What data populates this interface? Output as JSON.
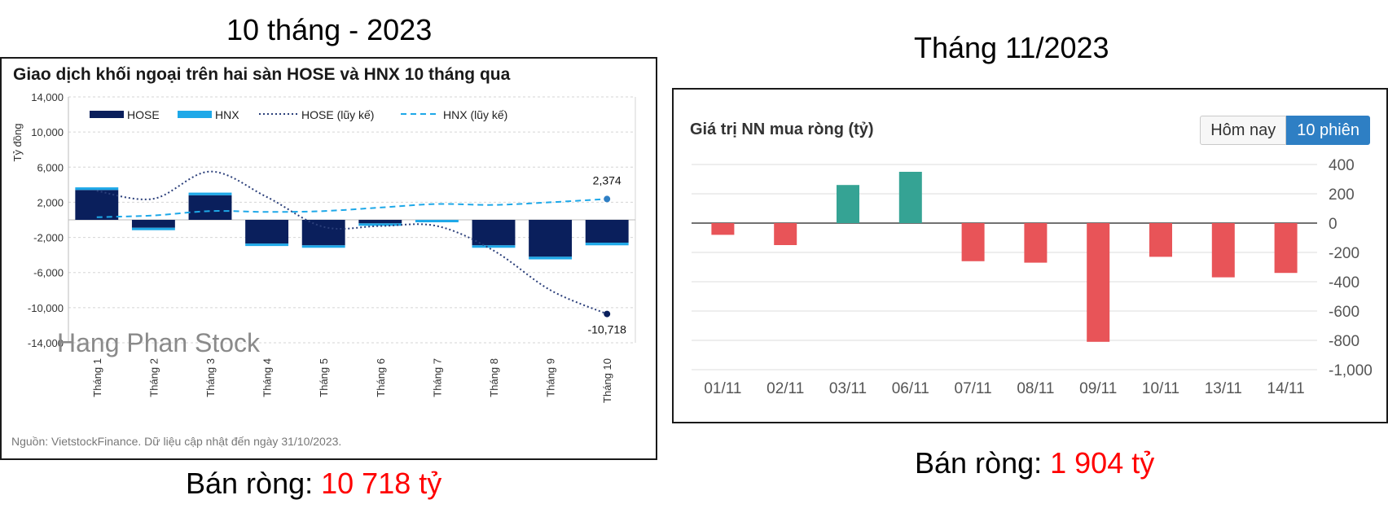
{
  "left": {
    "heading": "10 tháng - 2023",
    "summary_label": "Bán ròng: ",
    "summary_value": "10 718 tỷ"
  },
  "right": {
    "heading": "Tháng 11/2023",
    "summary_label": "Bán ròng: ",
    "summary_value": "1 904 tỷ"
  },
  "colors": {
    "hose": "#0a1f5c",
    "hnx": "#1ea8e8",
    "positive": "#35a394",
    "negative": "#e85458",
    "highlight": "#ff0000"
  },
  "chart_data": [
    {
      "type": "bar",
      "title": "Giao dịch khối ngoại trên hai sàn HOSE và HNX 10 tháng qua",
      "ylabel": "Tỷ đồng",
      "xlabel": "",
      "ylim": [
        -14000,
        14000
      ],
      "yticks": [
        14000,
        10000,
        6000,
        2000,
        -2000,
        -6000,
        -10000,
        -14000
      ],
      "ytick_labels": [
        "14,000",
        "10,000",
        "6,000",
        "2,000",
        "-2,000",
        "-6,000",
        "-10,000",
        "-14,000"
      ],
      "categories": [
        "Tháng 1",
        "Tháng 2",
        "Tháng 3",
        "Tháng 4",
        "Tháng 5",
        "Tháng 6",
        "Tháng 7",
        "Tháng 8",
        "Tháng 9",
        "Tháng 10"
      ],
      "series": [
        {
          "name": "HOSE",
          "kind": "bar",
          "values": [
            3400,
            -900,
            2800,
            -2700,
            -2900,
            -400,
            0,
            -2900,
            -4200,
            -2600
          ]
        },
        {
          "name": "HNX",
          "kind": "bar",
          "values": [
            300,
            -200,
            300,
            -100,
            -100,
            -100,
            -100,
            -100,
            -300,
            -300
          ]
        },
        {
          "name": "HOSE (lũy kế)",
          "kind": "line",
          "values": [
            3300,
            2400,
            5500,
            2600,
            -800,
            -700,
            -700,
            -3500,
            -8000,
            -10718
          ]
        },
        {
          "name": "HNX (lũy kế)",
          "kind": "line",
          "values": [
            300,
            500,
            1000,
            900,
            1000,
            1400,
            1800,
            1700,
            2000,
            2374
          ]
        }
      ],
      "annotations": [
        "2,374",
        "-10,718"
      ],
      "watermark": "Hang Phan Stock",
      "source": "Nguồn: VietstockFinance. Dữ liệu cập nhật đến ngày 31/10/2023."
    },
    {
      "type": "bar",
      "title": "Giá trị NN mua ròng (tỷ)",
      "xlabel": "",
      "ylabel": "",
      "ylim": [
        -1000,
        400
      ],
      "yticks": [
        400,
        200,
        0,
        -200,
        -400,
        -600,
        -800,
        -1000
      ],
      "ytick_labels": [
        "400",
        "200",
        "0",
        "-200",
        "-400",
        "-600",
        "-800",
        "-1,000"
      ],
      "categories": [
        "01/11",
        "02/11",
        "03/11",
        "06/11",
        "07/11",
        "08/11",
        "09/11",
        "10/11",
        "13/11",
        "14/11"
      ],
      "values": [
        -80,
        -150,
        260,
        350,
        -260,
        -270,
        -810,
        -230,
        -370,
        -340
      ],
      "buttons": [
        "Hôm nay",
        "10 phiên"
      ],
      "active_button": "10 phiên"
    }
  ]
}
